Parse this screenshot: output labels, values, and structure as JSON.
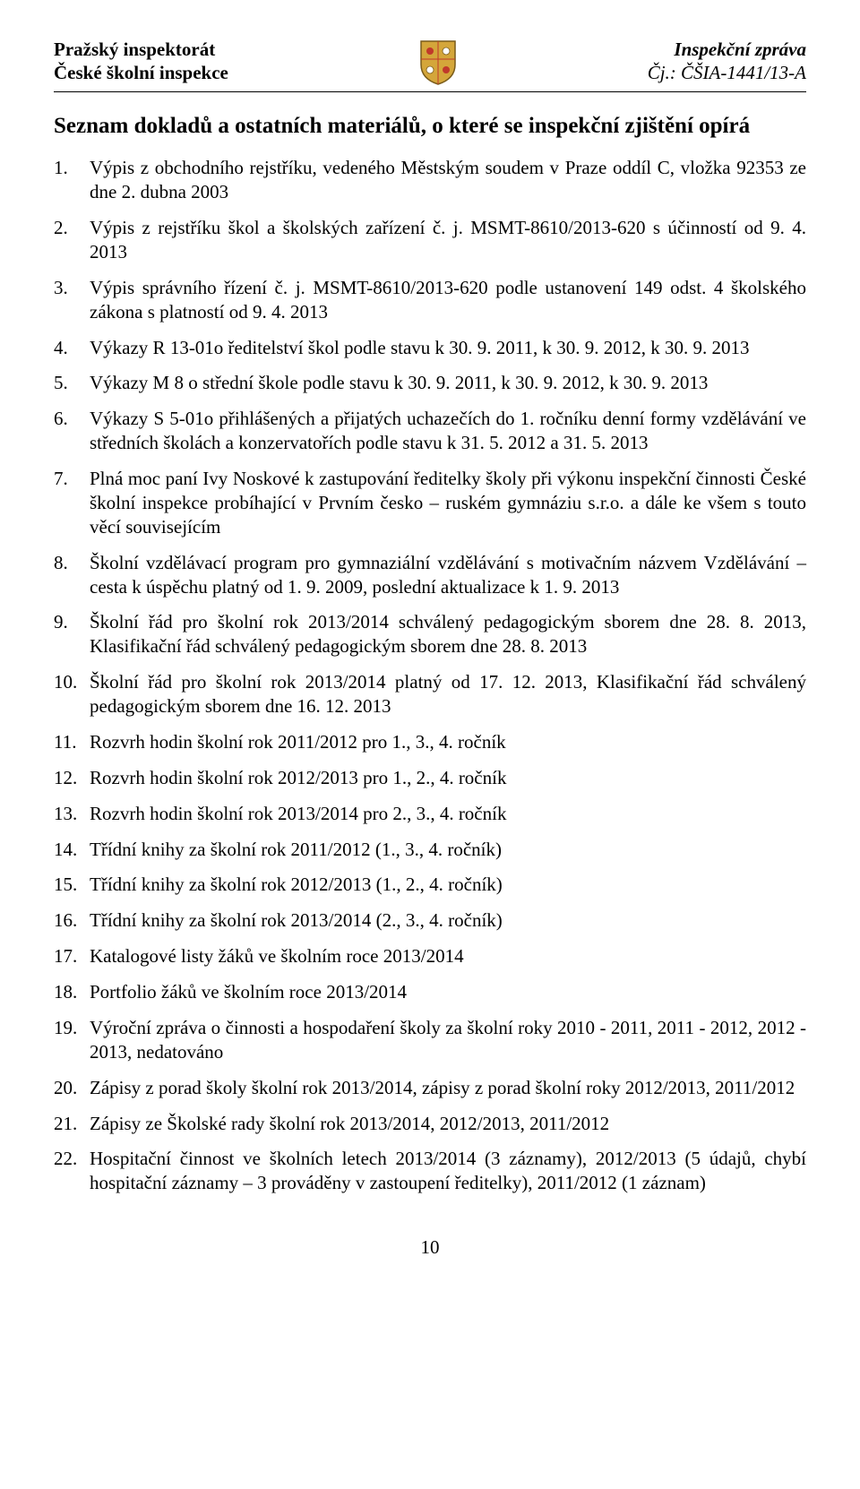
{
  "header": {
    "left_line1": "Pražský inspektorát",
    "left_line2": "České školní inspekce",
    "right_line1": "Inspekční zpráva",
    "right_line2": "Čj.: ČŠIA-1441/13-A",
    "crest_colors": {
      "shield": "#d4a63a",
      "accent": "#c0392b",
      "outline": "#7a5c1a"
    }
  },
  "section_title": "Seznam dokladů a ostatních materiálů, o které se inspekční zjištění opírá",
  "items": [
    "Výpis z obchodního rejstříku, vedeného Městským soudem v Praze oddíl C, vložka 92353 ze dne 2. dubna 2003",
    "Výpis z rejstříku škol a školských zařízení č. j. MSMT-8610/2013-620 s účinností od 9. 4. 2013",
    "Výpis správního řízení č. j. MSMT-8610/2013-620 podle ustanovení 149 odst. 4 školského zákona s platností od 9. 4. 2013",
    "Výkazy R 13-01o ředitelství škol podle stavu k 30. 9. 2011, k 30. 9. 2012, k 30. 9. 2013",
    "Výkazy M 8 o střední škole podle stavu k 30. 9. 2011, k 30. 9. 2012, k 30. 9. 2013",
    "Výkazy S 5-01o přihlášených a přijatých uchazečích do 1. ročníku denní formy vzdělávání ve středních školách a konzervatořích podle stavu k 31. 5. 2012 a 31. 5. 2013",
    "Plná moc paní Ivy Noskové k zastupování ředitelky školy při výkonu inspekční činnosti České školní inspekce probíhající v Prvním česko – ruském gymnáziu s.r.o. a dále ke všem s touto věcí souvisejícím",
    "Školní vzdělávací program pro gymnaziální vzdělávání s motivačním názvem Vzdělávání – cesta k úspěchu platný od 1. 9. 2009, poslední aktualizace k 1. 9. 2013",
    "Školní řád pro školní rok 2013/2014 schválený pedagogickým sborem dne 28. 8. 2013, Klasifikační řád schválený pedagogickým sborem dne 28. 8. 2013",
    "Školní řád pro školní rok 2013/2014 platný od 17. 12. 2013, Klasifikační řád schválený pedagogickým sborem dne 16. 12. 2013",
    "Rozvrh hodin školní rok 2011/2012 pro 1., 3., 4. ročník",
    "Rozvrh hodin školní rok 2012/2013 pro 1., 2., 4. ročník",
    "Rozvrh hodin školní rok 2013/2014 pro 2., 3., 4. ročník",
    "Třídní knihy za školní rok 2011/2012 (1., 3., 4. ročník)",
    "Třídní knihy za školní rok 2012/2013 (1., 2., 4. ročník)",
    "Třídní knihy za školní rok 2013/2014 (2., 3., 4. ročník)",
    "Katalogové listy žáků ve školním roce 2013/2014",
    "Portfolio žáků ve školním roce 2013/2014",
    "Výroční zpráva o činnosti a hospodaření školy za školní roky 2010 - 2011, 2011 - 2012, 2012 - 2013, nedatováno",
    "Zápisy z porad školy školní rok 2013/2014, zápisy z porad školní roky 2012/2013, 2011/2012",
    "Zápisy ze Školské rady školní rok 2013/2014, 2012/2013, 2011/2012",
    "Hospitační činnost ve školních letech 2013/2014 (3 záznamy), 2012/2013 (5 údajů, chybí hospitační záznamy – 3 prováděny v zastoupení ředitelky), 2011/2012 (1 záznam)"
  ],
  "page_number": "10"
}
